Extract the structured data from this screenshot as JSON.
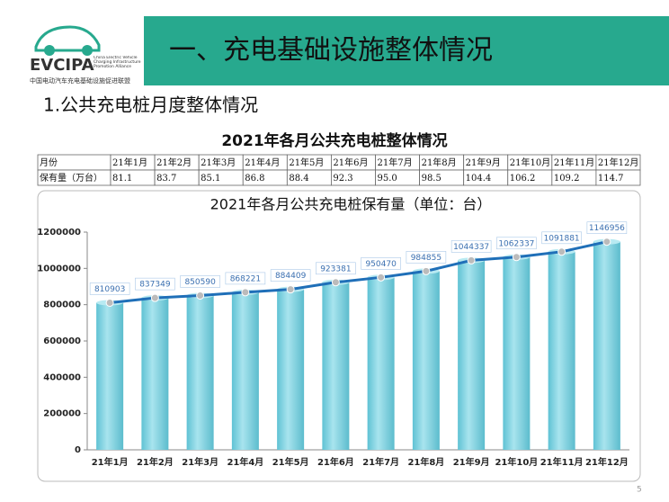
{
  "logo": {
    "name": "EVCIPA",
    "english": "China Electric Vehicle Charging Infrastructure Promotion Alliance",
    "chinese": "中国电动汽车充电基础设施促进联盟"
  },
  "header": {
    "title": "一、充电基础设施整体情况",
    "section": "1.公共充电桩月度整体情况"
  },
  "table": {
    "title": "2021年各月公共充电桩整体情况",
    "rows": [
      [
        "月份",
        "21年1月",
        "21年2月",
        "21年3月",
        "21年4月",
        "21年5月",
        "21年6月",
        "21年7月",
        "21年8月",
        "21年9月",
        "21年10月",
        "21年11月",
        "21年12月"
      ],
      [
        "保有量（万台）",
        "81.1",
        "83.7",
        "85.1",
        "86.8",
        "88.4",
        "92.3",
        "95.0",
        "98.5",
        "104.4",
        "106.2",
        "109.2",
        "114.7"
      ]
    ]
  },
  "chart_data": {
    "type": "bar",
    "line_overlay": true,
    "title": "2021年各月公共充电桩保有量（单位：台）",
    "categories": [
      "21年1月",
      "21年2月",
      "21年3月",
      "21年4月",
      "21年5月",
      "21年6月",
      "21年7月",
      "21年8月",
      "21年9月",
      "21年10月",
      "21年11月",
      "21年12月"
    ],
    "values": [
      810903,
      837349,
      850590,
      868221,
      884409,
      923381,
      950470,
      984855,
      1044337,
      1062337,
      1091881,
      1146956
    ],
    "color": "#7dd0de",
    "line_color": "#1f6fb8",
    "ylim": [
      0,
      1200000
    ],
    "yticks": [
      0,
      200000,
      400000,
      600000,
      800000,
      1000000,
      1200000
    ]
  },
  "page_number": "5"
}
